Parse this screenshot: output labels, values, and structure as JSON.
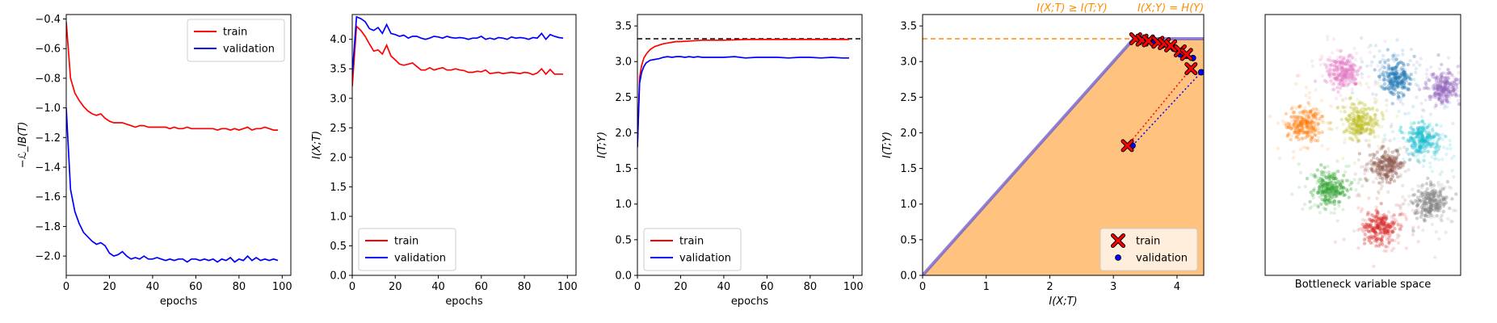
{
  "chart_data": [
    {
      "type": "line",
      "xlabel": "epochs",
      "ylabel": "−ℒ_IB(T)",
      "xlim": [
        0,
        104
      ],
      "ylim": [
        -2.13,
        -0.37
      ],
      "xticks": [
        0,
        20,
        40,
        60,
        80,
        100
      ],
      "yticks": [
        -2.0,
        -1.8,
        -1.6,
        -1.4,
        -1.2,
        -1.0,
        -0.8,
        -0.6,
        -0.4
      ],
      "ytick_labels": [
        "−2.0",
        "−1.8",
        "−1.6",
        "−1.4",
        "−1.2",
        "−1.0",
        "−0.8",
        "−0.6",
        "−0.4"
      ],
      "legend_position": "top-right",
      "series": [
        {
          "name": "train",
          "color": "#ff0000",
          "x": [
            0,
            2,
            4,
            6,
            8,
            10,
            12,
            14,
            16,
            18,
            20,
            22,
            24,
            26,
            28,
            30,
            32,
            34,
            36,
            38,
            40,
            42,
            44,
            46,
            48,
            50,
            52,
            54,
            56,
            58,
            60,
            62,
            64,
            66,
            68,
            70,
            72,
            74,
            76,
            78,
            80,
            82,
            84,
            86,
            88,
            90,
            92,
            94,
            96,
            98
          ],
          "values": [
            -0.42,
            -0.8,
            -0.9,
            -0.95,
            -0.99,
            -1.02,
            -1.04,
            -1.05,
            -1.04,
            -1.07,
            -1.09,
            -1.1,
            -1.1,
            -1.1,
            -1.11,
            -1.12,
            -1.13,
            -1.12,
            -1.12,
            -1.13,
            -1.13,
            -1.13,
            -1.13,
            -1.13,
            -1.14,
            -1.13,
            -1.14,
            -1.14,
            -1.13,
            -1.14,
            -1.14,
            -1.14,
            -1.14,
            -1.14,
            -1.14,
            -1.15,
            -1.14,
            -1.14,
            -1.15,
            -1.14,
            -1.15,
            -1.14,
            -1.13,
            -1.15,
            -1.14,
            -1.14,
            -1.13,
            -1.14,
            -1.15,
            -1.15
          ]
        },
        {
          "name": "validation",
          "color": "#0000ff",
          "x": [
            0,
            2,
            4,
            6,
            8,
            10,
            12,
            14,
            16,
            18,
            20,
            22,
            24,
            26,
            28,
            30,
            32,
            34,
            36,
            38,
            40,
            42,
            44,
            46,
            48,
            50,
            52,
            54,
            56,
            58,
            60,
            62,
            64,
            66,
            68,
            70,
            72,
            74,
            76,
            78,
            80,
            82,
            84,
            86,
            88,
            90,
            92,
            94,
            96,
            98
          ],
          "values": [
            -1.0,
            -1.55,
            -1.7,
            -1.78,
            -1.84,
            -1.87,
            -1.9,
            -1.92,
            -1.91,
            -1.93,
            -1.98,
            -2.0,
            -1.99,
            -1.97,
            -2.0,
            -2.02,
            -2.01,
            -2.02,
            -2.0,
            -2.02,
            -2.02,
            -2.01,
            -2.02,
            -2.03,
            -2.02,
            -2.03,
            -2.02,
            -2.02,
            -2.04,
            -2.02,
            -2.02,
            -2.03,
            -2.02,
            -2.03,
            -2.02,
            -2.04,
            -2.02,
            -2.03,
            -2.01,
            -2.04,
            -2.02,
            -2.03,
            -2.0,
            -2.03,
            -2.01,
            -2.03,
            -2.02,
            -2.03,
            -2.02,
            -2.03
          ]
        }
      ]
    },
    {
      "type": "line",
      "xlabel": "epochs",
      "ylabel": "I(X;T)",
      "xlim": [
        0,
        104
      ],
      "ylim": [
        0,
        4.42
      ],
      "xticks": [
        0,
        20,
        40,
        60,
        80,
        100
      ],
      "yticks": [
        0.0,
        0.5,
        1.0,
        1.5,
        2.0,
        2.5,
        3.0,
        3.5,
        4.0
      ],
      "ytick_labels": [
        "0.0",
        "0.5",
        "1.0",
        "1.5",
        "2.0",
        "2.5",
        "3.0",
        "3.5",
        "4.0"
      ],
      "legend_position": "bottom-left",
      "series": [
        {
          "name": "train",
          "color": "#ff0000",
          "x": [
            0,
            2,
            4,
            6,
            8,
            10,
            12,
            14,
            16,
            18,
            20,
            22,
            24,
            26,
            28,
            30,
            32,
            34,
            36,
            38,
            40,
            42,
            44,
            46,
            48,
            50,
            52,
            54,
            56,
            58,
            60,
            62,
            64,
            66,
            68,
            70,
            72,
            74,
            76,
            78,
            80,
            82,
            84,
            86,
            88,
            90,
            92,
            94,
            96,
            98
          ],
          "values": [
            3.2,
            4.22,
            4.15,
            4.05,
            3.92,
            3.8,
            3.82,
            3.75,
            3.9,
            3.72,
            3.65,
            3.58,
            3.56,
            3.58,
            3.6,
            3.54,
            3.48,
            3.48,
            3.52,
            3.48,
            3.5,
            3.52,
            3.48,
            3.48,
            3.5,
            3.48,
            3.47,
            3.44,
            3.44,
            3.46,
            3.45,
            3.48,
            3.42,
            3.43,
            3.44,
            3.42,
            3.43,
            3.44,
            3.43,
            3.42,
            3.44,
            3.43,
            3.4,
            3.43,
            3.5,
            3.41,
            3.49,
            3.41,
            3.41,
            3.41
          ]
        },
        {
          "name": "validation",
          "color": "#0000ff",
          "x": [
            0,
            2,
            4,
            6,
            8,
            10,
            12,
            14,
            16,
            18,
            20,
            22,
            24,
            26,
            28,
            30,
            32,
            34,
            36,
            38,
            40,
            42,
            44,
            46,
            48,
            50,
            52,
            54,
            56,
            58,
            60,
            62,
            64,
            66,
            68,
            70,
            72,
            74,
            76,
            78,
            80,
            82,
            84,
            86,
            88,
            90,
            92,
            94,
            96,
            98
          ],
          "values": [
            3.4,
            4.38,
            4.35,
            4.3,
            4.18,
            4.15,
            4.2,
            4.1,
            4.25,
            4.1,
            4.08,
            4.05,
            4.07,
            4.02,
            4.05,
            4.05,
            4.02,
            4.0,
            4.02,
            4.05,
            4.04,
            4.02,
            4.05,
            4.03,
            4.02,
            4.03,
            4.02,
            4.0,
            4.02,
            4.02,
            4.05,
            4.0,
            4.02,
            4.0,
            4.03,
            4.02,
            4.0,
            4.04,
            4.02,
            4.03,
            4.02,
            4.0,
            4.03,
            4.02,
            4.1,
            4.0,
            4.08,
            4.05,
            4.03,
            4.02
          ]
        }
      ]
    },
    {
      "type": "line",
      "xlabel": "epochs",
      "ylabel": "I(T;Y)",
      "xlim": [
        0,
        104
      ],
      "ylim": [
        0,
        3.66
      ],
      "xticks": [
        0,
        20,
        40,
        60,
        80,
        100
      ],
      "yticks": [
        0.0,
        0.5,
        1.0,
        1.5,
        2.0,
        2.5,
        3.0,
        3.5
      ],
      "ytick_labels": [
        "0.0",
        "0.5",
        "1.0",
        "1.5",
        "2.0",
        "2.5",
        "3.0",
        "3.5"
      ],
      "legend_position": "bottom-left",
      "hline": {
        "y": 3.32,
        "color": "#000000",
        "style": "dashed"
      },
      "series": [
        {
          "name": "train",
          "color": "#ff0000",
          "x": [
            0,
            1,
            2,
            3,
            4,
            5,
            6,
            8,
            10,
            12,
            14,
            16,
            18,
            20,
            25,
            30,
            35,
            40,
            50,
            60,
            70,
            80,
            90,
            98
          ],
          "values": [
            1.8,
            2.78,
            2.95,
            3.05,
            3.1,
            3.14,
            3.17,
            3.21,
            3.23,
            3.25,
            3.26,
            3.27,
            3.28,
            3.28,
            3.29,
            3.3,
            3.3,
            3.3,
            3.31,
            3.31,
            3.31,
            3.31,
            3.31,
            3.31
          ]
        },
        {
          "name": "validation",
          "color": "#0000ff",
          "x": [
            0,
            1,
            2,
            3,
            4,
            5,
            6,
            8,
            10,
            12,
            14,
            16,
            18,
            20,
            22,
            24,
            26,
            28,
            30,
            35,
            40,
            45,
            50,
            55,
            60,
            65,
            70,
            75,
            80,
            85,
            90,
            95,
            98
          ],
          "values": [
            1.8,
            2.7,
            2.85,
            2.93,
            2.98,
            3.0,
            3.02,
            3.03,
            3.04,
            3.06,
            3.07,
            3.06,
            3.07,
            3.07,
            3.06,
            3.07,
            3.06,
            3.07,
            3.06,
            3.06,
            3.06,
            3.07,
            3.05,
            3.06,
            3.06,
            3.06,
            3.05,
            3.06,
            3.06,
            3.05,
            3.06,
            3.05,
            3.05
          ]
        }
      ]
    },
    {
      "type": "scatter",
      "xlabel": "I(X;T)",
      "ylabel": "I(T;Y)",
      "xlim": [
        0,
        4.42
      ],
      "ylim": [
        0,
        3.66
      ],
      "xticks": [
        0,
        1,
        2,
        3,
        4
      ],
      "yticks": [
        0.0,
        0.5,
        1.0,
        1.5,
        2.0,
        2.5,
        3.0,
        3.5
      ],
      "ytick_labels": [
        "0.0",
        "0.5",
        "1.0",
        "1.5",
        "2.0",
        "2.5",
        "3.0",
        "3.5"
      ],
      "legend_position": "bottom-right",
      "entropy_HY": 3.32,
      "annotations": [
        {
          "text": "I(X;T) ≥ I(T;Y)",
          "color": "#ff8c00"
        },
        {
          "text": "I(X;Y) = H(Y)",
          "color": "#ff8c00"
        }
      ],
      "region_color": "#ffc27f",
      "series": [
        {
          "name": "train",
          "color": "#ff0000",
          "marker": "X",
          "points": [
            [
              3.22,
              1.82
            ],
            [
              3.35,
              3.32
            ],
            [
              3.45,
              3.3
            ],
            [
              3.55,
              3.29
            ],
            [
              3.7,
              3.27
            ],
            [
              3.8,
              3.25
            ],
            [
              3.9,
              3.22
            ],
            [
              4.05,
              3.15
            ],
            [
              4.15,
              3.1
            ],
            [
              4.22,
              2.9
            ]
          ]
        },
        {
          "name": "validation",
          "color": "#0000ff",
          "marker": "o",
          "points": [
            [
              3.3,
              1.82
            ],
            [
              3.45,
              3.31
            ],
            [
              3.55,
              3.29
            ],
            [
              3.65,
              3.28
            ],
            [
              3.8,
              3.24
            ],
            [
              3.95,
              3.18
            ],
            [
              4.05,
              3.1
            ],
            [
              4.15,
              3.08
            ],
            [
              4.25,
              3.05
            ],
            [
              4.38,
              2.85
            ]
          ]
        }
      ]
    },
    {
      "type": "scatter",
      "xlabel": "Bottleneck variable space",
      "clusters": [
        {
          "color": "#e377c2",
          "cx": 0.4,
          "cy": 0.78
        },
        {
          "color": "#1f77b4",
          "cx": 0.67,
          "cy": 0.76
        },
        {
          "color": "#9467bd",
          "cx": 0.91,
          "cy": 0.72
        },
        {
          "color": "#ff7f0e",
          "cx": 0.2,
          "cy": 0.58
        },
        {
          "color": "#bcbd22",
          "cx": 0.49,
          "cy": 0.59
        },
        {
          "color": "#17becf",
          "cx": 0.8,
          "cy": 0.52
        },
        {
          "color": "#8c564b",
          "cx": 0.62,
          "cy": 0.42
        },
        {
          "color": "#2ca02c",
          "cx": 0.33,
          "cy": 0.33
        },
        {
          "color": "#7f7f7f",
          "cx": 0.84,
          "cy": 0.28
        },
        {
          "color": "#d62728",
          "cx": 0.59,
          "cy": 0.18
        }
      ]
    }
  ]
}
